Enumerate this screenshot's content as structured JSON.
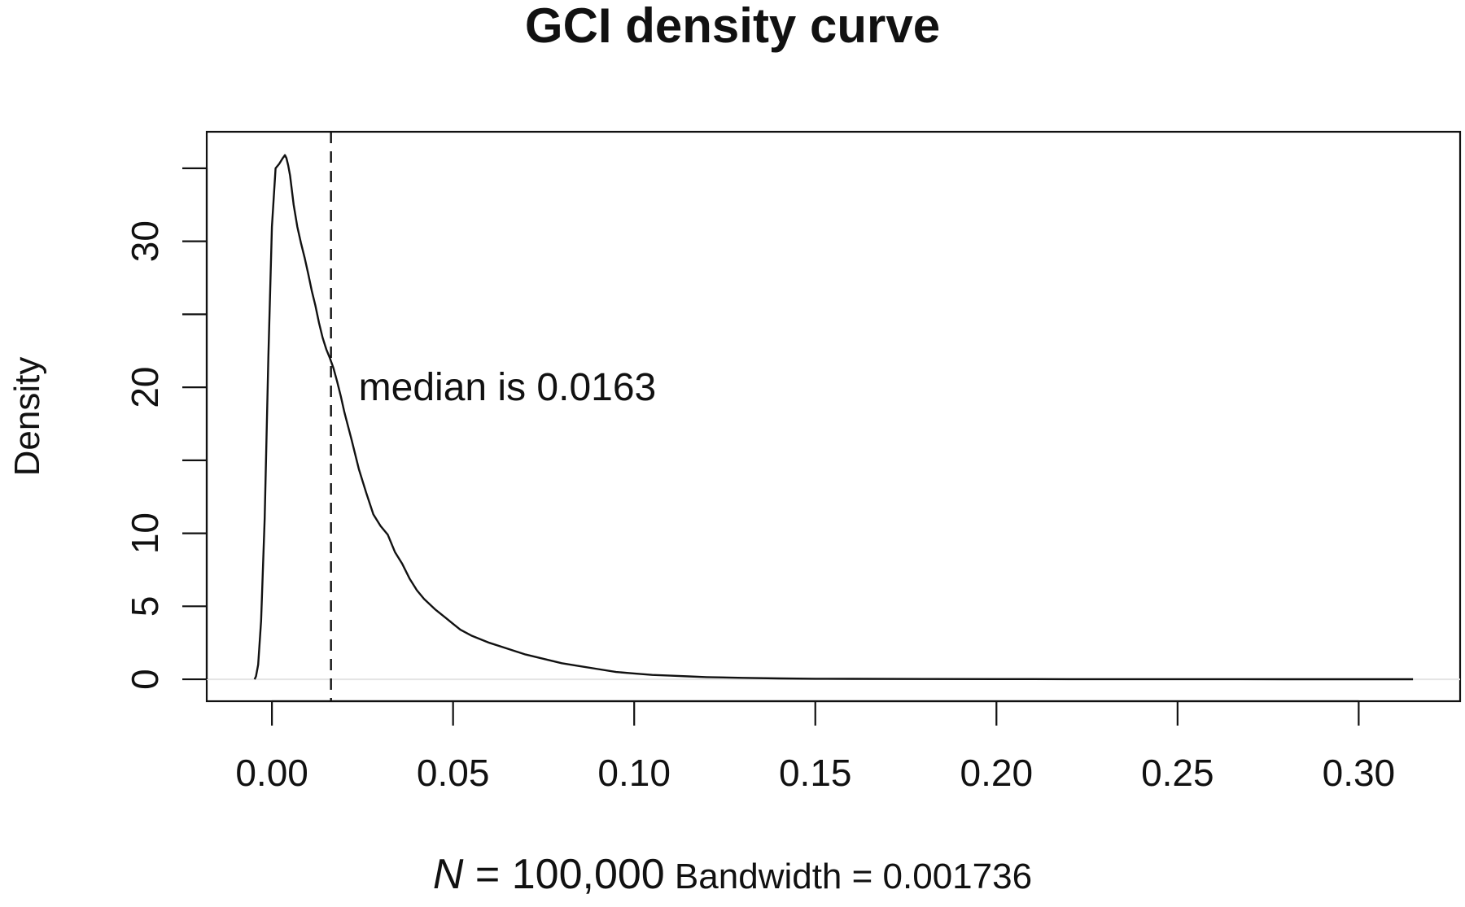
{
  "chart_data": {
    "type": "line",
    "title": "GCI density curve",
    "ylabel": "Density",
    "xlabel": {
      "n_symbol": "N",
      "n_value": " = 100,000",
      "bandwidth": " Bandwidth = 0.001736"
    },
    "xlim": [
      -0.018,
      0.328
    ],
    "ylim": [
      -1.5,
      37.5
    ],
    "x_ticks": [
      0.0,
      0.05,
      0.1,
      0.15,
      0.2,
      0.25,
      0.3
    ],
    "x_tick_labels": [
      "0.00",
      "0.05",
      "0.10",
      "0.15",
      "0.20",
      "0.25",
      "0.30"
    ],
    "y_ticks": [
      0,
      5,
      10,
      15,
      20,
      25,
      30,
      35
    ],
    "y_tick_labels": [
      "0",
      "5",
      "10",
      "",
      "20",
      "",
      "30",
      ""
    ],
    "zero_line": true,
    "median": {
      "x": 0.0163,
      "label": "median is 0.0163",
      "style": "dashed"
    },
    "series": [
      {
        "x": [
          -0.0048,
          -0.0044,
          -0.0038,
          -0.003,
          -0.002,
          -0.001,
          0.0,
          0.001,
          0.002,
          0.003,
          0.0036,
          0.004,
          0.0045,
          0.005,
          0.006,
          0.007,
          0.008,
          0.009,
          0.01,
          0.011,
          0.012,
          0.013,
          0.014,
          0.015,
          0.016,
          0.017,
          0.018,
          0.019,
          0.02,
          0.022,
          0.024,
          0.026,
          0.028,
          0.03,
          0.032,
          0.034,
          0.036,
          0.038,
          0.04,
          0.042,
          0.045,
          0.048,
          0.05,
          0.052,
          0.055,
          0.06,
          0.065,
          0.07,
          0.075,
          0.08,
          0.085,
          0.09,
          0.095,
          0.1,
          0.105,
          0.11,
          0.115,
          0.12,
          0.13,
          0.14,
          0.15,
          0.16,
          0.18,
          0.2,
          0.22,
          0.24,
          0.26,
          0.28,
          0.3,
          0.31,
          0.315
        ],
        "y": [
          0.0,
          0.2,
          1.0,
          4.0,
          11.0,
          22.0,
          31.0,
          35.0,
          35.3,
          35.7,
          35.9,
          35.7,
          35.2,
          34.5,
          32.5,
          31.0,
          29.9,
          28.9,
          27.8,
          26.6,
          25.6,
          24.4,
          23.4,
          22.6,
          22.0,
          21.3,
          20.4,
          19.4,
          18.3,
          16.4,
          14.4,
          12.8,
          11.3,
          10.5,
          9.9,
          8.7,
          7.9,
          6.9,
          6.1,
          5.5,
          4.8,
          4.2,
          3.8,
          3.4,
          3.0,
          2.5,
          2.1,
          1.7,
          1.4,
          1.1,
          0.9,
          0.7,
          0.5,
          0.4,
          0.3,
          0.25,
          0.2,
          0.15,
          0.1,
          0.06,
          0.04,
          0.03,
          0.02,
          0.015,
          0.01,
          0.01,
          0.008,
          0.006,
          0.005,
          0.004,
          0.003
        ]
      }
    ]
  }
}
